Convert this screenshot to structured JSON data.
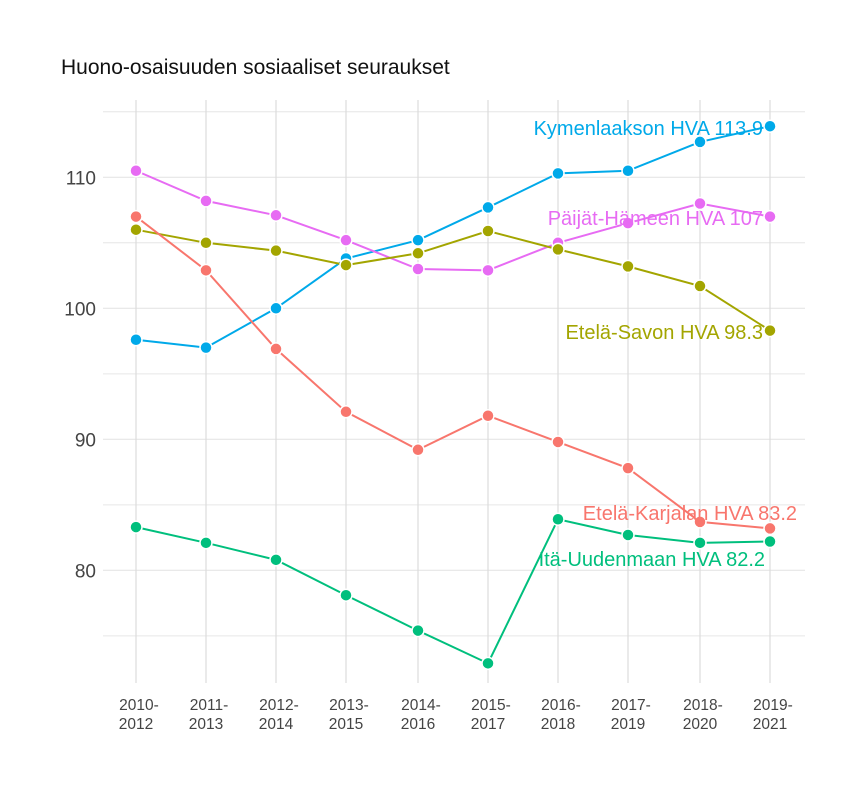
{
  "chart_data": {
    "type": "line",
    "title": "Huono-osaisuuden sosiaaliset seuraukset",
    "xlabel": "",
    "ylabel": "",
    "categories": [
      "2010-\n2012",
      "2011-\n2013",
      "2012-\n2014",
      "2013-\n2015",
      "2014-\n2016",
      "2015-\n2017",
      "2016-\n2018",
      "2017-\n2019",
      "2018-\n2020",
      "2019-\n2021"
    ],
    "ylim": [
      71.4,
      115.9
    ],
    "yticks": [
      80,
      90,
      100,
      110
    ],
    "grid": true,
    "legend": "none (direct end labels)",
    "series": [
      {
        "name": "Kymenlaakson HVA",
        "label": "Kymenlaakson HVA 113.9",
        "color": "#00A9E9",
        "values": [
          97.6,
          97.0,
          100.0,
          103.8,
          105.2,
          107.7,
          110.3,
          110.5,
          112.7,
          113.9
        ]
      },
      {
        "name": "Päijät-Hämeen HVA",
        "label": "Päijät-Hämeen HVA 107",
        "color": "#E76BF3",
        "values": [
          110.5,
          108.2,
          107.1,
          105.2,
          103.0,
          102.9,
          105.0,
          106.5,
          108.0,
          107.0
        ]
      },
      {
        "name": "Etelä-Savon HVA",
        "label": "Etelä-Savon HVA 98.3",
        "color": "#A3A500",
        "values": [
          106.0,
          105.0,
          104.4,
          103.3,
          104.2,
          105.9,
          104.5,
          103.2,
          101.7,
          98.3
        ]
      },
      {
        "name": "Etelä-Karjalan HVA",
        "label": "Etelä-Karjalan HVA 83.2",
        "color": "#F8766D",
        "values": [
          107.0,
          102.9,
          96.9,
          92.1,
          89.2,
          91.8,
          89.8,
          87.8,
          83.7,
          83.2
        ]
      },
      {
        "name": "Itä-Uudenmaan HVA",
        "label": "Itä-Uudenmaan HVA 82.2",
        "color": "#00BF7D",
        "values": [
          83.3,
          82.1,
          80.8,
          78.1,
          75.4,
          72.9,
          83.9,
          82.7,
          82.1,
          82.2
        ]
      }
    ]
  }
}
